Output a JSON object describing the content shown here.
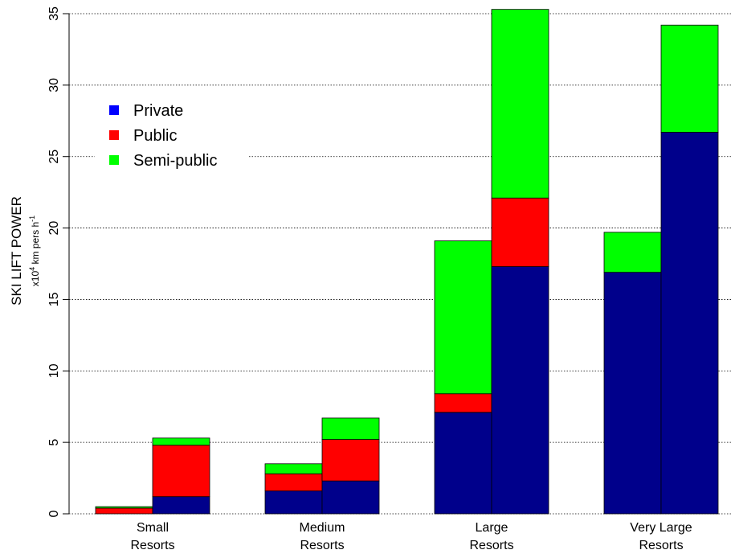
{
  "chart_data": {
    "type": "bar",
    "stacked": true,
    "title": "",
    "ylabel": "SKI LIFT POWER",
    "ylabel_unit": {
      "prefix": "x10",
      "exponent": "4",
      "middle": " km pers h",
      "suffix_exponent": "-1"
    },
    "ylim": [
      0,
      35
    ],
    "yticks": [
      "0",
      "5",
      "10",
      "15",
      "20",
      "25",
      "30",
      "35"
    ],
    "grid": "horizontal dotted",
    "legend_position": "top-left",
    "groups": [
      {
        "label_line1": "Small",
        "label_line2": "Resorts"
      },
      {
        "label_line1": "Medium",
        "label_line2": "Resorts"
      },
      {
        "label_line1": "Large",
        "label_line2": "Resorts"
      },
      {
        "label_line1": "Very Large",
        "label_line2": "Resorts"
      }
    ],
    "series": [
      {
        "name": "Private",
        "legend_color": "#0000ff",
        "bar_color": "#00008b",
        "values": [
          0.0,
          1.2,
          1.6,
          2.3,
          7.1,
          17.3,
          16.9,
          26.7
        ]
      },
      {
        "name": "Public",
        "legend_color": "#ff0000",
        "bar_color": "#ff0000",
        "values": [
          0.4,
          3.6,
          1.2,
          2.9,
          1.3,
          4.8,
          0.0,
          0.0
        ]
      },
      {
        "name": "Semi-public",
        "legend_color": "#00ff00",
        "bar_color": "#00ff00",
        "values": [
          0.1,
          0.5,
          0.7,
          1.5,
          10.7,
          13.2,
          2.8,
          7.5
        ]
      }
    ]
  }
}
